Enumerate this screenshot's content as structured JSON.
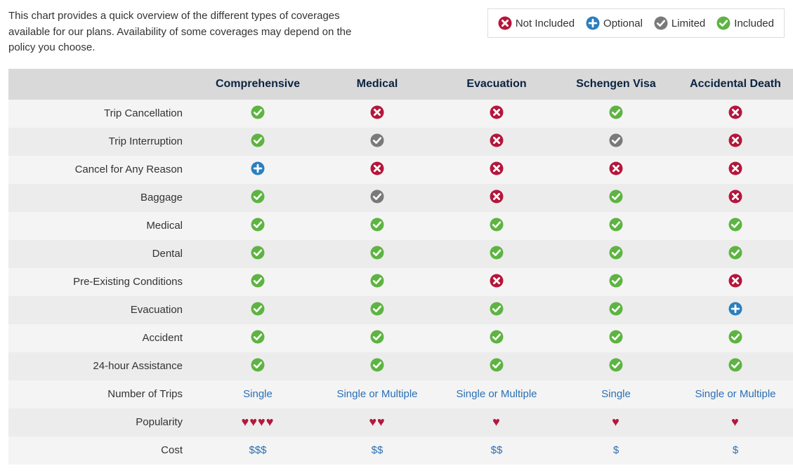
{
  "intro": "This chart provides a quick overview of the different types of coverages available for our plans. Availability of some coverages may depend on the policy you choose.",
  "legend": [
    {
      "status": "not_included",
      "label": "Not Included"
    },
    {
      "status": "optional",
      "label": "Optional"
    },
    {
      "status": "limited",
      "label": "Limited"
    },
    {
      "status": "included",
      "label": "Included"
    }
  ],
  "status_colors": {
    "not_included": "#b5163b",
    "optional": "#2a7fbf",
    "limited": "#7a7a7a",
    "included": "#5eb442"
  },
  "table": {
    "header_bg": "#d9d9d9",
    "header_text_color": "#0c2340",
    "row_band_a": "#f4f4f4",
    "row_band_b": "#ececec",
    "link_color": "#2a6fb5",
    "heart_color": "#b5163b",
    "plans": [
      "Comprehensive",
      "Medical",
      "Evacuation",
      "Schengen Visa",
      "Accidental Death"
    ],
    "coverage_rows": [
      {
        "label": "Trip Cancellation",
        "cells": [
          "included",
          "not_included",
          "not_included",
          "included",
          "not_included"
        ]
      },
      {
        "label": "Trip Interruption",
        "cells": [
          "included",
          "limited",
          "not_included",
          "limited",
          "not_included"
        ]
      },
      {
        "label": "Cancel for Any Reason",
        "cells": [
          "optional",
          "not_included",
          "not_included",
          "not_included",
          "not_included"
        ]
      },
      {
        "label": "Baggage",
        "cells": [
          "included",
          "limited",
          "not_included",
          "included",
          "not_included"
        ]
      },
      {
        "label": "Medical",
        "cells": [
          "included",
          "included",
          "included",
          "included",
          "included"
        ]
      },
      {
        "label": "Dental",
        "cells": [
          "included",
          "included",
          "included",
          "included",
          "included"
        ]
      },
      {
        "label": "Pre-Existing Conditions",
        "cells": [
          "included",
          "included",
          "not_included",
          "included",
          "not_included"
        ]
      },
      {
        "label": "Evacuation",
        "cells": [
          "included",
          "included",
          "included",
          "included",
          "optional"
        ]
      },
      {
        "label": "Accident",
        "cells": [
          "included",
          "included",
          "included",
          "included",
          "included"
        ]
      },
      {
        "label": "24-hour Assistance",
        "cells": [
          "included",
          "included",
          "included",
          "included",
          "included"
        ]
      }
    ],
    "text_rows": [
      {
        "label": "Number of Trips",
        "type": "link",
        "cells": [
          "Single",
          "Single or Multiple",
          "Single or Multiple",
          "Single",
          "Single or Multiple"
        ]
      },
      {
        "label": "Popularity",
        "type": "hearts",
        "cells": [
          4,
          2,
          1,
          1,
          1
        ]
      },
      {
        "label": "Cost",
        "type": "link",
        "cells": [
          "$$$",
          "$$",
          "$$",
          "$",
          "$"
        ]
      }
    ]
  }
}
